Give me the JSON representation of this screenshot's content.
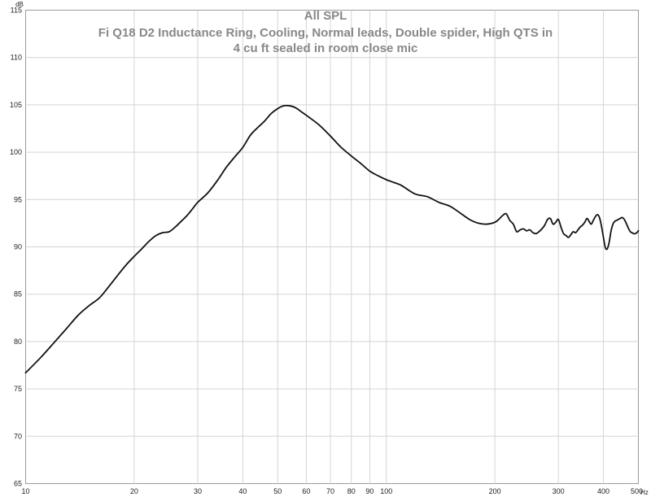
{
  "chart_data": {
    "type": "line",
    "title": "All SPL",
    "subtitle_lines": [
      "Fi Q18 D2 Inductance Ring, Cooling, Normal leads, Double spider, High QTS in",
      "4 cu ft sealed in room close mic"
    ],
    "x_unit": "Hz",
    "y_unit": "dB",
    "x_scale": "log",
    "xlim": [
      10,
      500
    ],
    "ylim": [
      65,
      115
    ],
    "x_ticks": [
      10,
      20,
      30,
      40,
      50,
      60,
      70,
      80,
      90,
      100,
      200,
      300,
      400,
      500
    ],
    "x_tick_labels": [
      "10",
      "20",
      "30",
      "40",
      "50",
      "60",
      "70",
      "80",
      "90",
      "100",
      "200",
      "300",
      "400",
      "500"
    ],
    "y_ticks": [
      65,
      70,
      75,
      80,
      85,
      90,
      95,
      100,
      105,
      110,
      115
    ],
    "y_tick_labels": [
      "65",
      "70",
      "75",
      "80",
      "85",
      "90",
      "95",
      "100",
      "105",
      "110",
      "115"
    ],
    "grid": true,
    "line_color": "#111111",
    "series": [
      {
        "x": [
          10,
          11,
          12,
          13,
          14,
          15,
          16,
          17,
          18,
          19,
          20,
          21,
          22,
          23,
          24,
          25,
          26,
          27,
          28,
          29,
          30,
          32,
          34,
          36,
          38,
          40,
          42,
          44,
          46,
          48,
          50,
          52,
          54,
          56,
          58,
          60,
          65,
          70,
          75,
          80,
          85,
          90,
          95,
          100,
          105,
          110,
          120,
          130,
          140,
          150,
          160,
          170,
          180,
          190,
          200,
          205,
          210,
          215,
          220,
          225,
          230,
          235,
          240,
          245,
          250,
          255,
          260,
          265,
          270,
          275,
          280,
          285,
          290,
          295,
          300,
          305,
          310,
          315,
          320,
          325,
          330,
          335,
          340,
          345,
          350,
          355,
          360,
          365,
          370,
          375,
          380,
          385,
          390,
          395,
          400,
          405,
          410,
          415,
          420,
          425,
          430,
          435,
          440,
          445,
          450,
          455,
          460,
          465,
          470,
          475,
          480,
          485,
          490,
          495,
          500
        ],
        "y": [
          76.7,
          78.3,
          79.9,
          81.4,
          82.8,
          83.8,
          84.6,
          85.8,
          87.0,
          88.1,
          89.0,
          89.8,
          90.6,
          91.2,
          91.5,
          91.6,
          92.1,
          92.7,
          93.3,
          94.0,
          94.7,
          95.7,
          97.0,
          98.4,
          99.5,
          100.5,
          101.8,
          102.6,
          103.3,
          104.1,
          104.6,
          104.9,
          104.9,
          104.7,
          104.3,
          103.9,
          102.9,
          101.7,
          100.5,
          99.6,
          98.8,
          98.0,
          97.5,
          97.1,
          96.8,
          96.5,
          95.6,
          95.3,
          94.7,
          94.3,
          93.6,
          92.9,
          92.5,
          92.4,
          92.6,
          92.9,
          93.3,
          93.5,
          92.8,
          92.4,
          91.6,
          91.8,
          91.9,
          91.7,
          91.8,
          91.5,
          91.4,
          91.6,
          91.9,
          92.3,
          92.9,
          93.0,
          92.4,
          92.6,
          92.9,
          92.1,
          91.4,
          91.2,
          91.0,
          91.3,
          91.6,
          91.5,
          91.8,
          92.1,
          92.3,
          92.6,
          93.0,
          92.7,
          92.4,
          92.8,
          93.2,
          93.4,
          93.1,
          92.2,
          91.0,
          89.9,
          89.8,
          90.5,
          91.7,
          92.4,
          92.7,
          92.8,
          92.9,
          93.0,
          93.1,
          93.0,
          92.7,
          92.3,
          91.9,
          91.6,
          91.5,
          91.4,
          91.4,
          91.5,
          91.7
        ]
      }
    ]
  }
}
